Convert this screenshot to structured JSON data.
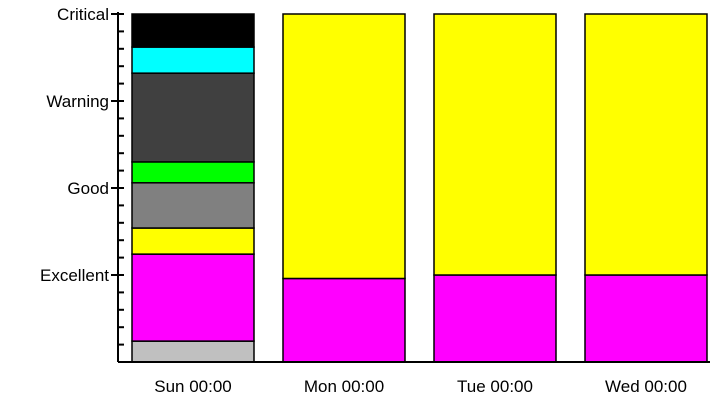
{
  "chart_data": {
    "type": "bar",
    "stacked": true,
    "title": "",
    "xlabel": "",
    "ylabel": "",
    "ylim": [
      0,
      100
    ],
    "grid": false,
    "legend": "none",
    "categories": [
      "Sun 00:00",
      "Mon 00:00",
      "Tue 00:00",
      "Wed 00:00"
    ],
    "y_tick_labels": [
      {
        "label": "Excellent",
        "value": 25
      },
      {
        "label": "Good",
        "value": 50
      },
      {
        "label": "Warning",
        "value": 75
      },
      {
        "label": "Critical",
        "value": 100
      }
    ],
    "series": [
      {
        "color": "#c0c0c0",
        "values": [
          6,
          0,
          0,
          0
        ]
      },
      {
        "color": "#ff00ff",
        "values": [
          25,
          24,
          25,
          25
        ]
      },
      {
        "color": "#ffff00",
        "values": [
          7.5,
          76,
          75,
          75
        ]
      },
      {
        "color": "#808080",
        "values": [
          13,
          0,
          0,
          0
        ]
      },
      {
        "color": "#00ff00",
        "values": [
          6,
          0,
          0,
          0
        ]
      },
      {
        "color": "#404040",
        "values": [
          25.5,
          0,
          0,
          0
        ]
      },
      {
        "color": "#00ffff",
        "values": [
          7.5,
          0,
          0,
          0
        ]
      },
      {
        "color": "#000000",
        "values": [
          9.5,
          0,
          0,
          0
        ]
      }
    ]
  }
}
